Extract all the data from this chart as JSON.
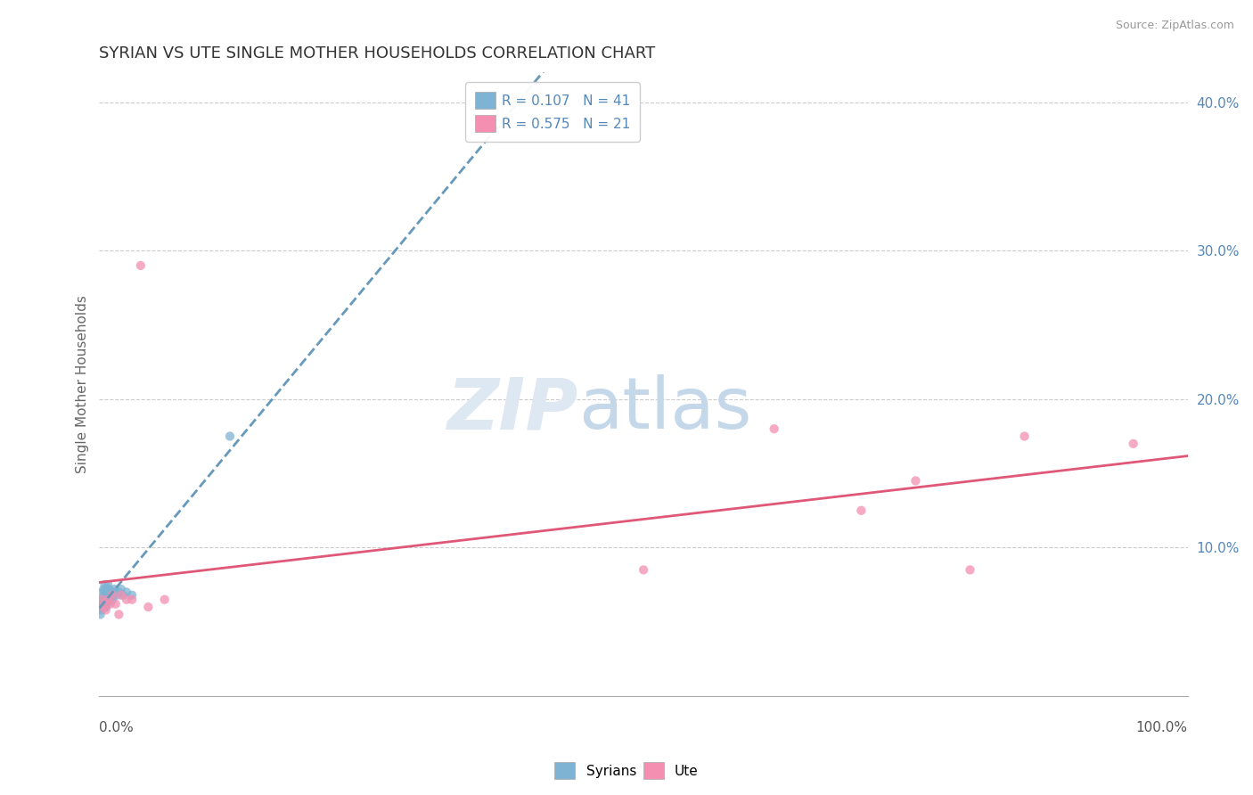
{
  "title": "SYRIAN VS UTE SINGLE MOTHER HOUSEHOLDS CORRELATION CHART",
  "source": "Source: ZipAtlas.com",
  "ylabel": "Single Mother Households",
  "legend_entries": [
    {
      "label_r": "R = 0.107",
      "label_n": "N = 41",
      "color": "#a8c8e8"
    },
    {
      "label_r": "R = 0.575",
      "label_n": "N = 21",
      "color": "#f4a8b8"
    }
  ],
  "syrians_x": [
    0.001,
    0.001,
    0.002,
    0.002,
    0.002,
    0.003,
    0.003,
    0.003,
    0.004,
    0.004,
    0.004,
    0.005,
    0.005,
    0.005,
    0.005,
    0.006,
    0.006,
    0.006,
    0.007,
    0.007,
    0.007,
    0.008,
    0.008,
    0.008,
    0.009,
    0.009,
    0.01,
    0.01,
    0.011,
    0.012,
    0.012,
    0.013,
    0.014,
    0.015,
    0.016,
    0.018,
    0.02,
    0.022,
    0.025,
    0.03,
    0.12
  ],
  "syrians_y": [
    0.055,
    0.06,
    0.058,
    0.062,
    0.065,
    0.06,
    0.065,
    0.07,
    0.062,
    0.067,
    0.072,
    0.06,
    0.065,
    0.07,
    0.075,
    0.06,
    0.065,
    0.07,
    0.062,
    0.067,
    0.072,
    0.065,
    0.07,
    0.075,
    0.067,
    0.072,
    0.065,
    0.07,
    0.068,
    0.065,
    0.07,
    0.068,
    0.072,
    0.07,
    0.068,
    0.07,
    0.072,
    0.068,
    0.07,
    0.068,
    0.175
  ],
  "ute_x": [
    0.002,
    0.004,
    0.006,
    0.008,
    0.01,
    0.012,
    0.015,
    0.018,
    0.02,
    0.025,
    0.03,
    0.038,
    0.045,
    0.06,
    0.5,
    0.62,
    0.7,
    0.75,
    0.8,
    0.85,
    0.95
  ],
  "ute_y": [
    0.065,
    0.06,
    0.058,
    0.065,
    0.062,
    0.068,
    0.062,
    0.055,
    0.068,
    0.065,
    0.065,
    0.29,
    0.06,
    0.065,
    0.085,
    0.18,
    0.125,
    0.145,
    0.085,
    0.175,
    0.17
  ],
  "syrians_color": "#7fb3d3",
  "ute_color": "#f48fb1",
  "syrians_line_color": "#6699bb",
  "ute_line_color": "#e05878",
  "xlim": [
    0.0,
    1.0
  ],
  "ylim": [
    0.0,
    0.42
  ],
  "ytick_vals": [
    0.1,
    0.2,
    0.3,
    0.4
  ],
  "ytick_labels": [
    "10.0%",
    "20.0%",
    "30.0%",
    "40.0%"
  ],
  "title_fontsize": 13,
  "label_fontsize": 11,
  "legend_fontsize": 11
}
